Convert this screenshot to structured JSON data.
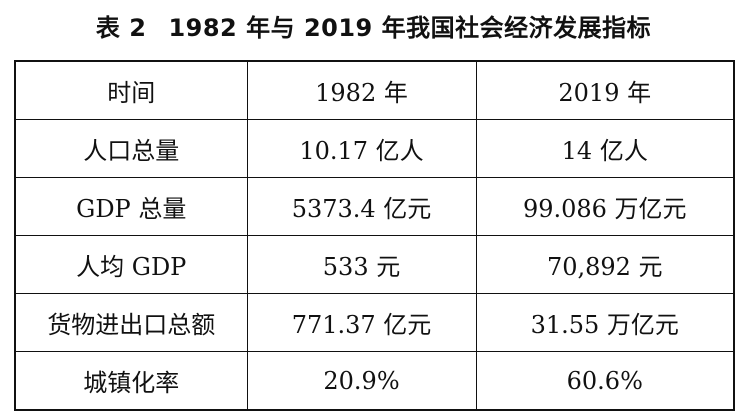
{
  "caption": {
    "label": "表 2",
    "title": "1982 年与 2019 年我国社会经济发展指标"
  },
  "table": {
    "headers": [
      "时间",
      "1982 年",
      "2019 年"
    ],
    "rows": [
      [
        "人口总量",
        "10.17 亿人",
        "14 亿人"
      ],
      [
        "GDP 总量",
        "5373.4 亿元",
        "99.086 万亿元"
      ],
      [
        "人均 GDP",
        "533 元",
        "70,892 元"
      ],
      [
        "货物进出口总额",
        "771.37 亿元",
        "31.55 万亿元"
      ],
      [
        "城镇化率",
        "20.9%",
        "60.6%"
      ]
    ]
  }
}
